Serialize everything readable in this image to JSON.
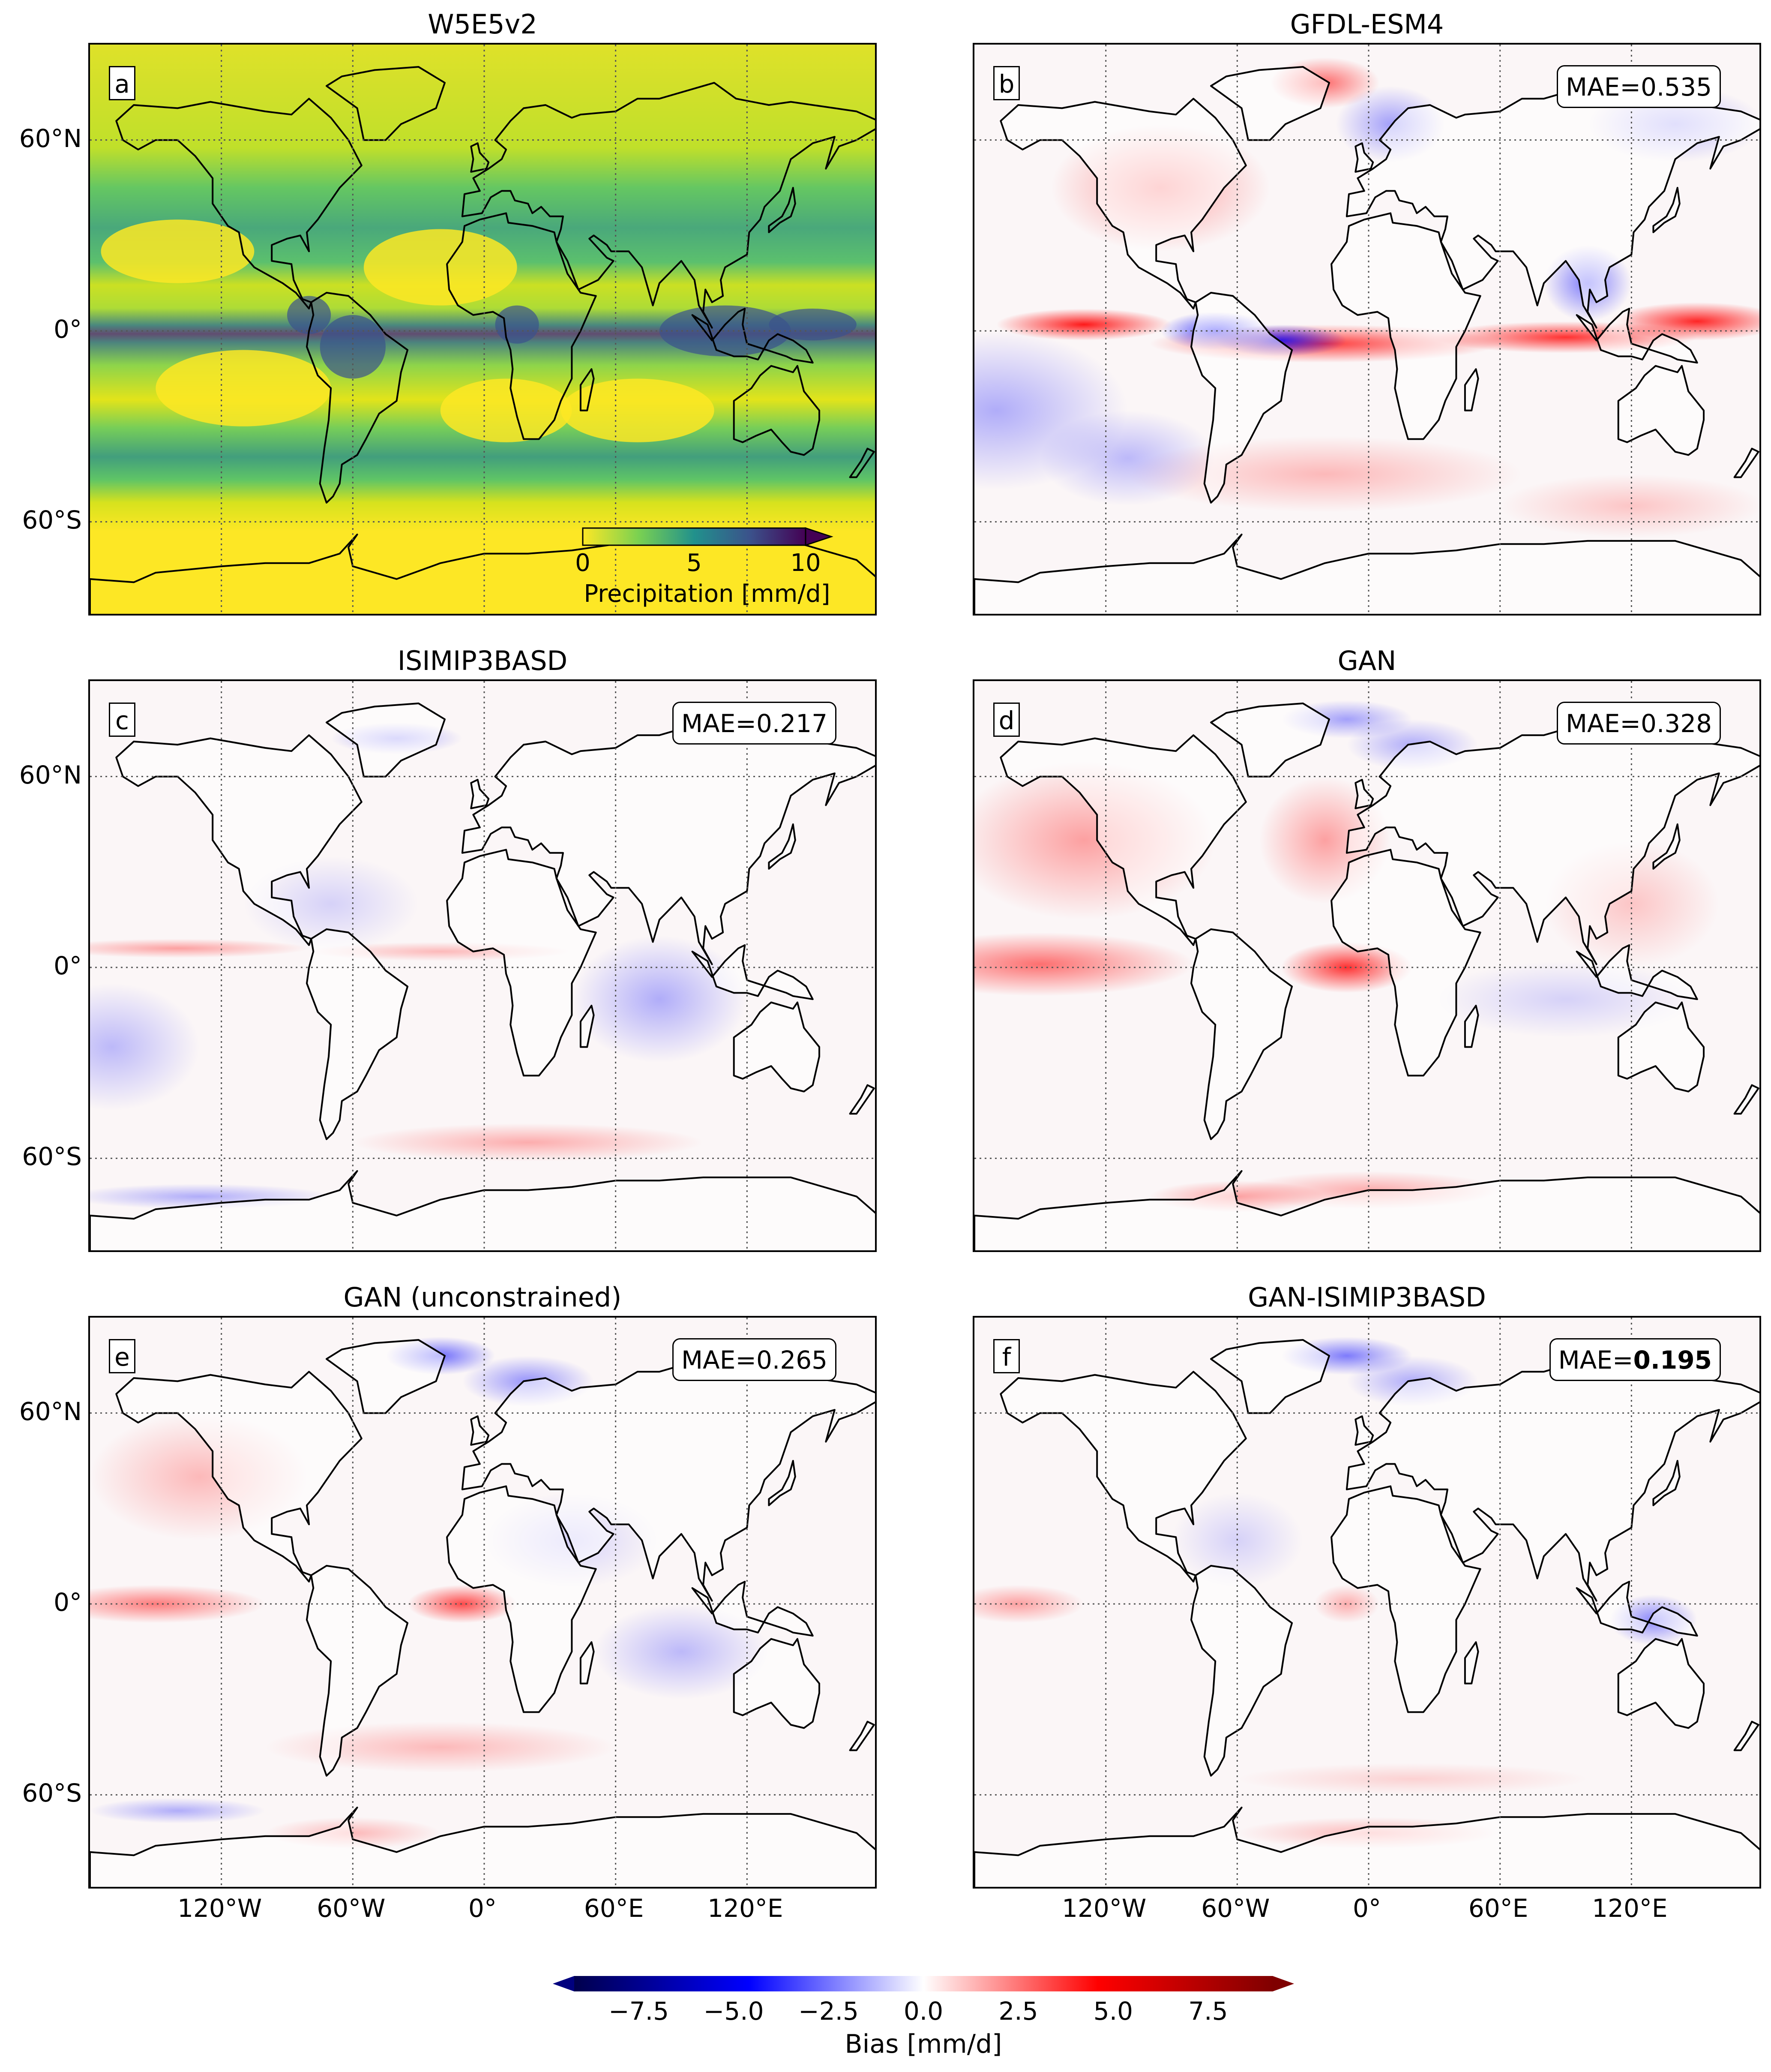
{
  "panels": [
    {
      "title": "W5E5v2",
      "letter": "a",
      "mae_label": "",
      "mae_value": "",
      "mae_bold": false
    },
    {
      "title": "GFDL-ESM4",
      "letter": "b",
      "mae_label": "MAE=",
      "mae_value": "0.535",
      "mae_bold": false
    },
    {
      "title": "ISIMIP3BASD",
      "letter": "c",
      "mae_label": "MAE=",
      "mae_value": "0.217",
      "mae_bold": false
    },
    {
      "title": "GAN",
      "letter": "d",
      "mae_label": "MAE=",
      "mae_value": "0.328",
      "mae_bold": false
    },
    {
      "title": "GAN (unconstrained)",
      "letter": "e",
      "mae_label": "MAE=",
      "mae_value": "0.265",
      "mae_bold": false
    },
    {
      "title": "GAN-ISIMIP3BASD",
      "letter": "f",
      "mae_label": "MAE=",
      "mae_value": "0.195",
      "mae_bold": true
    }
  ],
  "lat_labels": [
    "60°N",
    "0°",
    "60°S"
  ],
  "lon_labels": [
    "120°W",
    "60°W",
    "0°",
    "60°E",
    "120°E"
  ],
  "inset_colorbar": {
    "label": "Precipitation [mm/d]",
    "ticks": [
      "0",
      "5",
      "10"
    ],
    "colormap": "viridis_r"
  },
  "bias_colorbar": {
    "label": "Bias [mm/d]",
    "ticks": [
      "−7.5",
      "−5.0",
      "−2.5",
      "0.0",
      "2.5",
      "5.0",
      "7.5"
    ],
    "colormap": "seismic",
    "negative_color": "#00007f",
    "positive_color": "#7f0000"
  },
  "colors": {
    "viridis_low": "#fde725",
    "viridis_mid": "#21918c",
    "viridis_high": "#440154",
    "bias_red": "#ff0000",
    "bias_blue": "#0000ff"
  }
}
